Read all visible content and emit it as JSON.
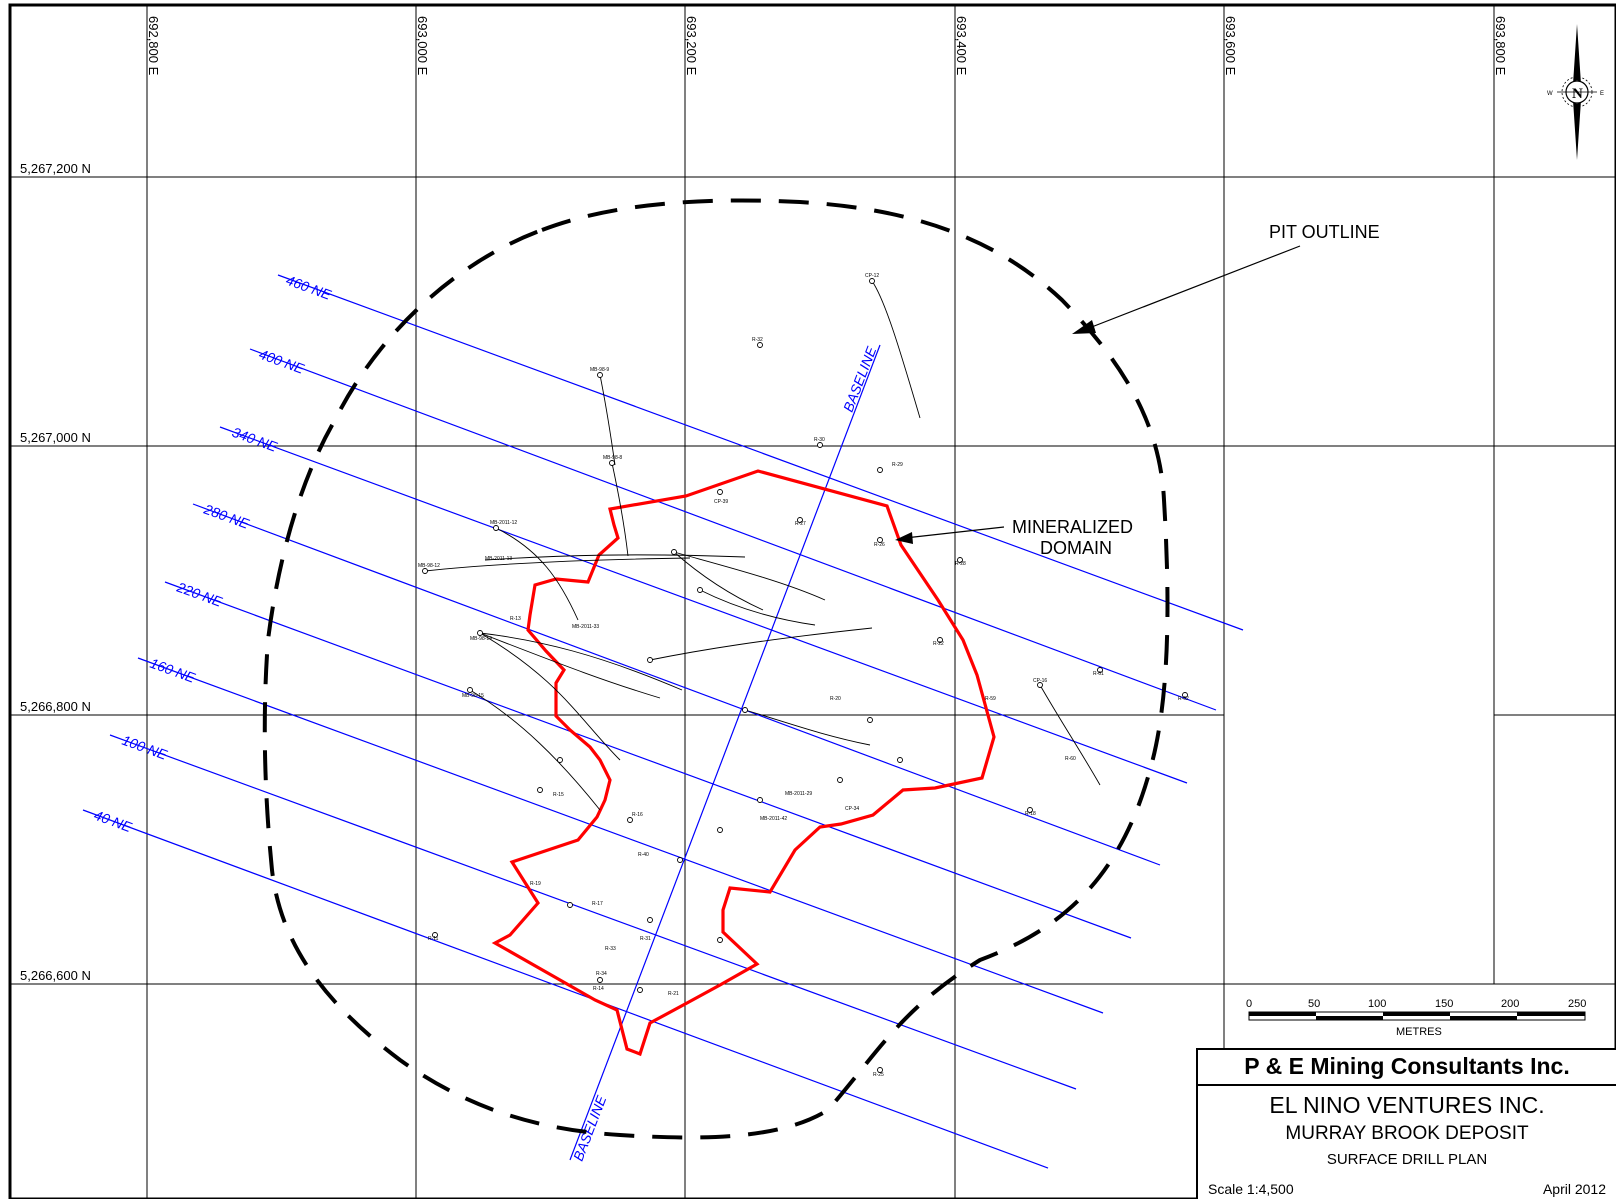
{
  "map": {
    "easting_labels": [
      "692,800 E",
      "693,000 E",
      "693,200 E",
      "693,400 E",
      "693,600 E",
      "693,800 E"
    ],
    "northing_labels": [
      "5,267,200 N",
      "5,267,000 N",
      "5,266,800 N",
      "5,266,600 N"
    ],
    "section_lines": [
      "460 NE",
      "400 NE",
      "340 NE",
      "280 NE",
      "220 NE",
      "160 NE",
      "100 NE",
      "40 NE"
    ],
    "baseline_label": "BASELINE",
    "callouts": {
      "pit_outline": "PIT OUTLINE",
      "mineralized_line1": "MINERALIZED",
      "mineralized_line2": "DOMAIN"
    },
    "colors": {
      "section_lines": "#0000ff",
      "mineralized_domain": "#ff0000",
      "pit_outline": "#000000",
      "grid": "#000000"
    },
    "north_arrow": {
      "icon": "north-arrow-icon",
      "symbol": "N",
      "east": "E",
      "west": "W"
    },
    "drill_hole_labels": [
      "CP-12",
      "R-32",
      "MB-98-9",
      "MB-98-8",
      "R-30",
      "R-29",
      "CP-39",
      "R-27",
      "R-28",
      "R-26",
      "MB-2011-13",
      "MB-2011-12",
      "MB-98-12",
      "R-13",
      "MB-2011-33",
      "MB-98-14",
      "MB-98-15",
      "R-22",
      "R-20",
      "R-59",
      "CP-16",
      "R-61",
      "R-62",
      "R-60",
      "R-18",
      "R-15",
      "R-16",
      "R-19",
      "R-17",
      "MB-2011-29",
      "MB-2011-42",
      "CP-34",
      "R-11",
      "R-14",
      "R-21",
      "R-25",
      "R-40",
      "R-34",
      "R-33",
      "R-31"
    ]
  },
  "scale_bar": {
    "ticks": [
      "0",
      "50",
      "100",
      "150",
      "200",
      "250"
    ],
    "units": "METRES"
  },
  "title_block": {
    "company": "P & E Mining Consultants Inc.",
    "client": "EL NINO VENTURES INC.",
    "project": "MURRAY BROOK DEPOSIT",
    "drawing": "SURFACE DRILL PLAN",
    "scale": "Scale 1:4,500",
    "date": "April 2012"
  }
}
